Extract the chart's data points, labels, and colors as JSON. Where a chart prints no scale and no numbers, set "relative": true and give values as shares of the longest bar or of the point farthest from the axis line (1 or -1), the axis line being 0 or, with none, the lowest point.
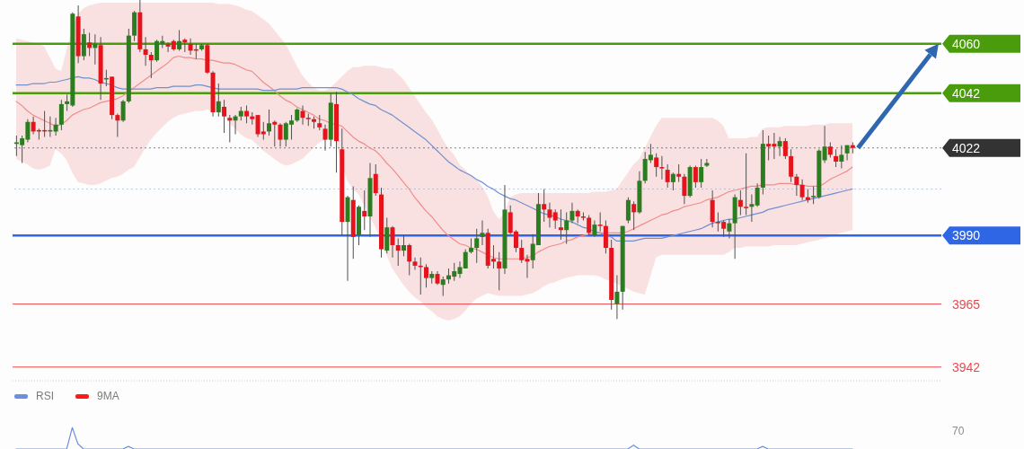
{
  "chart_data": [
    {
      "type": "candlestick",
      "categories": [
        null,
        null,
        null,
        null,
        null,
        null,
        null,
        null,
        null,
        null,
        null,
        null,
        null,
        null,
        null,
        null,
        null,
        null,
        null,
        null,
        null,
        null,
        null,
        null,
        null,
        null,
        null,
        null,
        null,
        null,
        null,
        null,
        null,
        null,
        null,
        null,
        null,
        null,
        null,
        null,
        null,
        null,
        null,
        null,
        null,
        null,
        null,
        null,
        null,
        null,
        null,
        null,
        null,
        null,
        null,
        null,
        null,
        null,
        null,
        null,
        null,
        null,
        null,
        null,
        null,
        null,
        null,
        null,
        null,
        null,
        null,
        null,
        null,
        null,
        null,
        null,
        null,
        null,
        null,
        null,
        null,
        null,
        null,
        null,
        null,
        null,
        null,
        null,
        null,
        null,
        null,
        null,
        null,
        null,
        null,
        null,
        null,
        null,
        null,
        null,
        null,
        null,
        null,
        null,
        null,
        null,
        null,
        null,
        null,
        null,
        null,
        null,
        null,
        null,
        null,
        null,
        null,
        null,
        null,
        null,
        null,
        null,
        null,
        null,
        null,
        null,
        null,
        null,
        null,
        null,
        null,
        null,
        null,
        null,
        null,
        null,
        null,
        null,
        null,
        null,
        null,
        null,
        null,
        null,
        null,
        null,
        null,
        null,
        null,
        null
      ],
      "ohlc": [
        [
          4023.5,
          4026.5,
          4019,
          4024
        ],
        [
          4023,
          4026.5,
          4016.5,
          4025.5
        ],
        [
          4025,
          4032.5,
          4024,
          4031.5
        ],
        [
          4031.5,
          4033.5,
          4027,
          4028
        ],
        [
          4028.5,
          4029,
          4025,
          4028
        ],
        [
          4028.5,
          4035.5,
          4026,
          4028
        ],
        [
          4028,
          4033.5,
          4026,
          4028.5
        ],
        [
          4028,
          4033,
          4026.5,
          4030.5
        ],
        [
          4030.5,
          4039.5,
          4028.5,
          4038
        ],
        [
          4038,
          4041.5,
          4035.5,
          4039
        ],
        [
          4037.5,
          4071.5,
          4037,
          4071
        ],
        [
          4070,
          4074,
          4053,
          4055.5
        ],
        [
          4055.5,
          4065.5,
          4054,
          4063.5
        ],
        [
          4060.5,
          4064,
          4055.5,
          4058.5
        ],
        [
          4058.5,
          4063.5,
          4052.5,
          4060
        ],
        [
          4059.5,
          4062.5,
          4039.5,
          4045.5
        ],
        [
          4047,
          4050.5,
          4044.5,
          4047.5
        ],
        [
          4048,
          4048,
          4032.5,
          4034
        ],
        [
          4034,
          4034.5,
          4026,
          4032
        ],
        [
          4032,
          4039.5,
          4031.5,
          4039
        ],
        [
          4039,
          4065.5,
          4038.5,
          4063
        ],
        [
          4063,
          4072,
          4061,
          4071.5
        ],
        [
          4071.5,
          4076,
          4057,
          4058
        ],
        [
          4058,
          4062.5,
          4052,
          4056
        ],
        [
          4056,
          4057,
          4047.5,
          4054
        ],
        [
          4054,
          4061.5,
          4053.5,
          4061
        ],
        [
          4060,
          4063,
          4058.5,
          4061
        ],
        [
          4060,
          4060.5,
          4057,
          4059
        ],
        [
          4061,
          4061.5,
          4057.5,
          4058
        ],
        [
          4058,
          4065,
          4057.5,
          4061
        ],
        [
          4061.5,
          4062,
          4057,
          4060.5
        ],
        [
          4060,
          4062,
          4056,
          4057.5
        ],
        [
          4058,
          4060,
          4054.5,
          4057.5
        ],
        [
          4058,
          4060,
          4057.5,
          4059.5
        ],
        [
          4059.5,
          4060,
          4049,
          4049.5
        ],
        [
          4049.5,
          4050,
          4033.5,
          4035
        ],
        [
          4035,
          4045.5,
          4033.5,
          4039
        ],
        [
          4037,
          4039.5,
          4027.5,
          4033.5
        ],
        [
          4033,
          4034,
          4024,
          4032
        ],
        [
          4032,
          4034,
          4027,
          4033.5
        ],
        [
          4033.5,
          4037,
          4032,
          4035.5
        ],
        [
          4035.5,
          4037.5,
          4031,
          4033.5
        ],
        [
          4033.5,
          4035,
          4030.5,
          4032.5
        ],
        [
          4034,
          4034,
          4026,
          4027
        ],
        [
          4028,
          4031.5,
          4025,
          4027
        ],
        [
          4028,
          4036,
          4026.5,
          4031
        ],
        [
          4031.5,
          4032,
          4022.5,
          4030.5
        ],
        [
          4030.5,
          4031,
          4022.5,
          4025
        ],
        [
          4025,
          4031.5,
          4022.5,
          4031
        ],
        [
          4030.5,
          4034,
          4025,
          4032
        ],
        [
          4032,
          4036.5,
          4031.5,
          4036
        ],
        [
          4035.5,
          4037.5,
          4030.5,
          4033
        ],
        [
          4033,
          4034.5,
          4030,
          4032.5
        ],
        [
          4032.5,
          4033.5,
          4029,
          4031.5
        ],
        [
          4031,
          4034,
          4028.5,
          4029.5
        ],
        [
          4029,
          4030.5,
          4021,
          4025
        ],
        [
          4025,
          4042,
          4022.5,
          4038.5
        ],
        [
          4038,
          4042.5,
          4013,
          4024.5
        ],
        [
          4021.5,
          4029,
          3990,
          3995
        ],
        [
          3995,
          4004.5,
          3973.5,
          4004
        ],
        [
          4003,
          4008,
          3981.5,
          3989.5
        ],
        [
          3990,
          4001,
          3986.5,
          4000.5
        ],
        [
          3999,
          4006.5,
          3992,
          3997
        ],
        [
          3997,
          4016.5,
          3989.5,
          4011
        ],
        [
          4012.5,
          4016,
          4004.5,
          4005.5
        ],
        [
          4005,
          4007.5,
          3982,
          3985
        ],
        [
          3984.5,
          3996.5,
          3983.5,
          3993
        ],
        [
          3993,
          3993.5,
          3982,
          3986.5
        ],
        [
          3986.5,
          3989,
          3979,
          3984.5
        ],
        [
          3984.5,
          3990,
          3982.5,
          3986.5
        ],
        [
          3986.5,
          3987,
          3975.5,
          3980.5
        ],
        [
          3980.5,
          3982,
          3977.5,
          3979
        ],
        [
          3979,
          3982,
          3968.5,
          3978.5
        ],
        [
          3978.5,
          3979.5,
          3971,
          3974.5
        ],
        [
          3974.5,
          3977,
          3972.5,
          3976
        ],
        [
          3976,
          3977,
          3972,
          3972.5
        ],
        [
          3972,
          3975,
          3968,
          3974
        ],
        [
          3974,
          3978,
          3972.5,
          3975.5
        ],
        [
          3975,
          3980,
          3973.5,
          3977
        ],
        [
          3976,
          3980.5,
          3974.5,
          3978.5
        ],
        [
          3978,
          3985,
          3978,
          3984
        ],
        [
          3984,
          3989,
          3983.5,
          3985.5
        ],
        [
          3985.5,
          3992.5,
          3980,
          3989
        ],
        [
          3989.5,
          3995.5,
          3986.5,
          3991
        ],
        [
          3991,
          3992.5,
          3978,
          3979
        ],
        [
          3981.5,
          3986.5,
          3978,
          3980.5
        ],
        [
          3980.5,
          3984,
          3970,
          3978
        ],
        [
          3978,
          4008.5,
          3976,
          3999.5
        ],
        [
          3998.5,
          4001,
          3990.5,
          3991
        ],
        [
          3991.5,
          3992,
          3984,
          3985.5
        ],
        [
          3985.5,
          3988.5,
          3980,
          3981
        ],
        [
          3981.5,
          3983,
          3974.5,
          3980.5
        ],
        [
          3981,
          3990.5,
          3978,
          3987
        ],
        [
          3986.5,
          4005.5,
          3986.5,
          4001.5
        ],
        [
          4001.5,
          4007,
          3995,
          3999.5
        ],
        [
          3999.5,
          4002,
          3993,
          3996.5
        ],
        [
          3998.5,
          3999.5,
          3992.5,
          3995.5
        ],
        [
          3993,
          3999.5,
          3988.5,
          3992
        ],
        [
          3992,
          3998.5,
          3987,
          3995.5
        ],
        [
          3995.5,
          4002,
          3994.5,
          3999
        ],
        [
          3999,
          3999.5,
          3994.5,
          3997
        ],
        [
          3997,
          3998.5,
          3995.5,
          3996.5
        ],
        [
          3996.5,
          3997.5,
          3990,
          3991
        ],
        [
          3990,
          3995.5,
          3989.5,
          3994
        ],
        [
          3994,
          3998.5,
          3991.5,
          3993.5
        ],
        [
          3993.5,
          3995.5,
          3983.5,
          3985.5
        ],
        [
          3985.5,
          3988.5,
          3963,
          3966.5
        ],
        [
          3965,
          3975.5,
          3959.5,
          3969.5
        ],
        [
          3969.5,
          3993.5,
          3963,
          3993.5
        ],
        [
          3995.5,
          4004,
          3994.5,
          4003
        ],
        [
          4001.5,
          4002.5,
          3992,
          3998.5
        ],
        [
          3998.5,
          4013.5,
          3998,
          4010
        ],
        [
          4010,
          4020.5,
          4009,
          4018
        ],
        [
          4017.5,
          4023.5,
          4016.5,
          4019.5
        ],
        [
          4018.5,
          4020,
          4011.5,
          4015
        ],
        [
          4015,
          4019,
          4010.5,
          4014.5
        ],
        [
          4014,
          4016,
          4007.5,
          4009.5
        ],
        [
          4009.5,
          4013,
          4006.5,
          4012.5
        ],
        [
          4012.5,
          4016,
          4009.5,
          4011.5
        ],
        [
          4011.5,
          4012.5,
          4001.5,
          4004.5
        ],
        [
          4004.5,
          4015.5,
          4004,
          4015
        ],
        [
          4015,
          4015.5,
          4007.5,
          4009.5
        ],
        [
          4009.5,
          4018,
          4007.5,
          4015
        ],
        [
          4015.5,
          4018,
          4015,
          4016.5
        ],
        [
          4003,
          4006.5,
          3993,
          3995
        ],
        [
          3995,
          3998.5,
          3991.5,
          3994.5
        ],
        [
          3995,
          3995.5,
          3989.5,
          3992.5
        ],
        [
          3991.5,
          3996,
          3989,
          3994.5
        ],
        [
          3994.5,
          4005,
          3981.5,
          4004
        ],
        [
          4003,
          4006.5,
          3997.5,
          4000.5
        ],
        [
          4000.5,
          4020,
          3997.5,
          4000
        ],
        [
          4000.5,
          4005,
          3995,
          4001.5
        ],
        [
          4001,
          4009,
          4000.5,
          4007.5
        ],
        [
          4007.5,
          4028.5,
          4005,
          4023.5
        ],
        [
          4023.5,
          4026.5,
          4017.5,
          4022.5
        ],
        [
          4023.5,
          4027.5,
          4018,
          4022.5
        ],
        [
          4022.5,
          4026,
          4019,
          4024.5
        ],
        [
          4024.5,
          4025.5,
          4018,
          4019
        ],
        [
          4019,
          4021.5,
          4009.5,
          4011.5
        ],
        [
          4011.5,
          4012.5,
          4004.5,
          4008.5
        ],
        [
          4008.5,
          4010.5,
          4003,
          4004
        ],
        [
          4004,
          4007,
          4002,
          4003
        ],
        [
          4004,
          4008,
          4001.5,
          4004.5
        ],
        [
          4004,
          4021.5,
          4003.5,
          4021
        ],
        [
          4017.5,
          4030,
          4016.5,
          4022.5
        ],
        [
          4022.5,
          4024,
          4018.5,
          4019.5
        ],
        [
          4019,
          4021.5,
          4015,
          4017
        ],
        [
          4017,
          4023,
          4014.5,
          4019.5
        ],
        [
          4020,
          4023,
          4017.5,
          4023
        ],
        [
          4023,
          4024,
          4020,
          4022
        ]
      ],
      "colors": [
        "#2b7d1f",
        "#2b7d1f",
        "#2b7d1f",
        "#e5141c",
        "#e5141c",
        "#e5141c",
        "#2b7d1f",
        "#2b7d1f",
        "#2b7d1f",
        "#2b7d1f",
        "#2b7d1f",
        "#e5141c",
        "#2b7d1f",
        "#e5141c",
        "#2b7d1f",
        "#e5141c",
        "#2b7d1f",
        "#e5141c",
        "#e5141c",
        "#2b7d1f",
        "#2b7d1f",
        "#2b7d1f",
        "#e5141c",
        "#e5141c",
        "#e5141c",
        "#2b7d1f",
        "#2b7d1f",
        "#e5141c",
        "#e5141c",
        "#2b7d1f",
        "#e5141c",
        "#e5141c",
        "#e5141c",
        "#2b7d1f",
        "#e5141c",
        "#e5141c",
        "#2b7d1f",
        "#e5141c",
        "#e5141c",
        "#2b7d1f",
        "#2b7d1f",
        "#e5141c",
        "#e5141c",
        "#e5141c",
        "#e5141c",
        "#2b7d1f",
        "#e5141c",
        "#e5141c",
        "#2b7d1f",
        "#2b7d1f",
        "#2b7d1f",
        "#e5141c",
        "#e5141c",
        "#e5141c",
        "#e5141c",
        "#e5141c",
        "#2b7d1f",
        "#e5141c",
        "#e5141c",
        "#2b7d1f",
        "#e5141c",
        "#2b7d1f",
        "#e5141c",
        "#2b7d1f",
        "#e5141c",
        "#e5141c",
        "#2b7d1f",
        "#e5141c",
        "#e5141c",
        "#2b7d1f",
        "#e5141c",
        "#e5141c",
        "#e5141c",
        "#e5141c",
        "#2b7d1f",
        "#e5141c",
        "#2b7d1f",
        "#2b7d1f",
        "#2b7d1f",
        "#2b7d1f",
        "#2b7d1f",
        "#2b7d1f",
        "#2b7d1f",
        "#2b7d1f",
        "#e5141c",
        "#e5141c",
        "#e5141c",
        "#2b7d1f",
        "#e5141c",
        "#e5141c",
        "#e5141c",
        "#e5141c",
        "#2b7d1f",
        "#2b7d1f",
        "#e5141c",
        "#e5141c",
        "#e5141c",
        "#e5141c",
        "#2b7d1f",
        "#2b7d1f",
        "#e5141c",
        "#e5141c",
        "#e5141c",
        "#2b7d1f",
        "#e5141c",
        "#e5141c",
        "#e5141c",
        "#2b7d1f",
        "#2b7d1f",
        "#2b7d1f",
        "#e5141c",
        "#2b7d1f",
        "#2b7d1f",
        "#2b7d1f",
        "#e5141c",
        "#e5141c",
        "#e5141c",
        "#2b7d1f",
        "#e5141c",
        "#e5141c",
        "#2b7d1f",
        "#e5141c",
        "#2b7d1f",
        "#2b7d1f",
        "#e5141c",
        "#e5141c",
        "#e5141c",
        "#2b7d1f",
        "#2b7d1f",
        "#e5141c",
        "#e5141c",
        "#2b7d1f",
        "#2b7d1f",
        "#2b7d1f",
        "#e5141c",
        "#e5141c",
        "#2b7d1f",
        "#e5141c",
        "#e5141c",
        "#e5141c",
        "#e5141c",
        "#e5141c",
        "#2b7d1f",
        "#2b7d1f",
        "#2b7d1f",
        "#e5141c",
        "#e5141c",
        "#2b7d1f",
        "#2b7d1f",
        "#e5141c"
      ],
      "series": [
        {
          "type": "line",
          "color": "#f08c8c",
          "values": [
            4039,
            4037.5,
            4035.5,
            4034,
            4033,
            4032,
            4031,
            4030,
            4030.5,
            4032,
            4034,
            4035,
            4036,
            4036.5,
            4037.5,
            4038.5,
            4039,
            4039.5,
            4040,
            4041,
            4042.5,
            4044,
            4045.5,
            4047,
            4048.5,
            4050,
            4051.5,
            4053,
            4055,
            4055.5,
            4055,
            4055,
            4054.5,
            4054.5,
            4054,
            4054,
            4053.5,
            4053,
            4053,
            4052.5,
            4051.5,
            4050.5,
            4050,
            4048,
            4046,
            4044.5,
            4043,
            4041,
            4039.5,
            4038.5,
            4037,
            4036,
            4035,
            4034,
            4032.5,
            4032,
            4031,
            4030.5,
            4030,
            4028,
            4026,
            4024.5,
            4023.5,
            4022,
            4021,
            4019,
            4016.5,
            4014.5,
            4012,
            4009.5,
            4007,
            4004,
            4001.5,
            3999,
            3997,
            3994.5,
            3992,
            3990,
            3988.5,
            3987,
            3986.5,
            3985.5,
            3985,
            3984,
            3983,
            3982,
            3981.5,
            3981.5,
            3981.5,
            3981.5,
            3981.5,
            3982,
            3982.5,
            3984,
            3985,
            3986,
            3986.5,
            3987,
            3988,
            3988.5,
            3989.5,
            3990,
            3990.5,
            3991,
            3991,
            3991,
            3991,
            3991,
            3991,
            3991.5,
            3992.5,
            3993.5,
            3994.5,
            3995.5,
            3996.5,
            3997.5,
            3998,
            3999,
            3999.5,
            4000.5,
            4001,
            4001.5,
            4002,
            4003,
            4003.5,
            4004,
            4005,
            4006,
            4006.5,
            4007,
            4007.5,
            4008,
            4008,
            4008.5,
            4008.5,
            4008.5,
            4009,
            4009,
            4009,
            4008.5,
            4008.5,
            4008,
            4008,
            4008,
            4009,
            4010.5,
            4011.5,
            4012.5,
            4013.5,
            4015
          ],
          "lower": [
            4018,
            4017,
            4016,
            4014.5,
            4014,
            4014.5,
            4015.5,
            4021.5,
            4020,
            4017.5,
            4013,
            4009.5,
            4009,
            4008.5,
            4008.5,
            4009,
            4010,
            4011,
            4011.5,
            4012.5,
            4014,
            4015,
            4018.5,
            4022,
            4025,
            4027.5,
            4029.5,
            4031.5,
            4033,
            4034,
            4034.5,
            4035,
            4035.5,
            4035.5,
            4036,
            4035.5,
            4035,
            4034.5,
            4031,
            4029,
            4027,
            4025.5,
            4025,
            4023,
            4021,
            4019.5,
            4018,
            4016.5,
            4015.5,
            4016,
            4017,
            4018,
            4020,
            4022,
            4024,
            4025,
            4026,
            4024,
            4016,
            4010,
            4007,
            4005,
            4001,
            3997,
            3993,
            3988,
            3983,
            3978,
            3975,
            3972,
            3969.5,
            3967.5,
            3966,
            3964,
            3962.5,
            3960.5,
            3959.5,
            3959,
            3959.5,
            3960.5,
            3962.5,
            3965,
            3967,
            3968,
            3969,
            3968.5,
            3968,
            3968,
            3968,
            3968,
            3968,
            3968.5,
            3969,
            3970,
            3971.5,
            3972.5,
            3973,
            3974,
            3974.5,
            3975,
            3975.5,
            3975.5,
            3975.5,
            3975.5,
            3975,
            3974,
            3973.5,
            3972.5,
            3971.5,
            3970.5,
            3969.5,
            3969,
            3968.5,
            3975,
            3982,
            3983,
            3983,
            3983,
            3983,
            3983,
            3983,
            3983,
            3983,
            3983,
            3983,
            3983,
            3983,
            3984,
            3985.5,
            3985.5,
            3986,
            3986,
            3986,
            3986,
            3986,
            3986.5,
            3986.5,
            3986.5,
            3986.5,
            3986.5,
            3987,
            3987.5,
            3988,
            3988.5,
            3989,
            3989.5,
            3990,
            3991,
            3991.5,
            3992
          ],
          "upper": [
            4062,
            4061.5,
            4061,
            4060.5,
            4060,
            4059,
            4055,
            4051,
            4050,
            4058,
            4066,
            4071,
            4073,
            4074,
            4074.5,
            4075,
            4075,
            4075,
            4075,
            4075,
            4075,
            4075,
            4075,
            4075,
            4075,
            4075,
            4075,
            4075,
            4075,
            4075,
            4075,
            4075,
            4075,
            4075,
            4075,
            4075,
            4074.5,
            4074.5,
            4074.5,
            4074,
            4073.5,
            4072.5,
            4072,
            4070.5,
            4069,
            4067.5,
            4065,
            4062.5,
            4060,
            4056,
            4052,
            4048.5,
            4046,
            4044,
            4043,
            4043,
            4044,
            4046,
            4048,
            4050,
            4051.5,
            4051.5,
            4052,
            4052,
            4052,
            4051.5,
            4051,
            4051,
            4049,
            4047,
            4044,
            4041,
            4038,
            4035,
            4032.5,
            4029,
            4025,
            4022,
            4019.5,
            4016,
            4014,
            4012,
            4010.5,
            4008,
            4004.5,
            3999,
            3996,
            3998,
            4004,
            4005,
            4005.5,
            4005.5,
            4005.5,
            4005.5,
            4005.5,
            4005.5,
            4005.5,
            4005.5,
            4005.5,
            4005.5,
            4005.5,
            4005.5,
            4005.5,
            4006,
            4006,
            4006,
            4006.5,
            4007,
            4010,
            4013,
            4016,
            4018,
            4022,
            4026,
            4030,
            4033,
            4033,
            4033,
            4033,
            4033,
            4033,
            4033,
            4033,
            4033,
            4033,
            4032,
            4030,
            4025.5,
            4025.5,
            4025.5,
            4025.5,
            4026,
            4026,
            4029,
            4029.5,
            4029.5,
            4029.5,
            4030,
            4030,
            4030,
            4030,
            4030,
            4030.5,
            4030.5,
            4030.5,
            4031,
            4031,
            4031,
            4031,
            4031
          ]
        },
        {
          "type": "line",
          "color": "#7090d0",
          "values": [
            4045,
            4045,
            4045,
            4045.5,
            4045.5,
            4045.5,
            4046,
            4046,
            4046.5,
            4047,
            4047.5,
            4048,
            4047.5,
            4047.5,
            4047,
            4046,
            4045.5,
            4045,
            4044,
            4043.5,
            4043.5,
            4043.5,
            4043.5,
            4043.5,
            4043.5,
            4044,
            4044,
            4044,
            4044.5,
            4044.5,
            4044.5,
            4044.5,
            4045,
            4045,
            4044.5,
            4044,
            4043.5,
            4043.5,
            4043.5,
            4043.5,
            4043.5,
            4043.5,
            4043.5,
            4043.5,
            4043,
            4043,
            4043,
            4043.5,
            4043.5,
            4043.5,
            4043.5,
            4044,
            4044,
            4044,
            4044,
            4044,
            4044,
            4044,
            4043.5,
            4042.5,
            4041.5,
            4040,
            4039,
            4038,
            4037.5,
            4036,
            4035,
            4034,
            4032.5,
            4031,
            4029.5,
            4028,
            4026.5,
            4025,
            4023,
            4021,
            4019,
            4017,
            4015.5,
            4014,
            4013,
            4012,
            4010.5,
            4009.5,
            4008,
            4007,
            4005.5,
            4004.5,
            4003.5,
            4003,
            4002,
            4001,
            4000,
            3999,
            3998,
            3997.5,
            3997,
            3996,
            3995.5,
            3995,
            3994,
            3993,
            3992.5,
            3991.5,
            3991,
            3990,
            3989.5,
            3988,
            3988,
            3988,
            3988,
            3988.5,
            3989,
            3989,
            3989,
            3989,
            3989.5,
            3990,
            3990.5,
            3991,
            3991.5,
            3992,
            3992.5,
            3993.5,
            3994.5,
            3995,
            3995.5,
            3996,
            3996,
            3996.5,
            3997,
            3997.5,
            3998,
            3998.5,
            3999.5,
            4000,
            4000.5,
            4001,
            4001.5,
            4002,
            4002.5,
            4003,
            4003.5,
            4004,
            4004.5,
            4005,
            4005.5,
            4006,
            4006.5,
            4007
          ]
        }
      ],
      "ylim": [
        3937,
        4076
      ],
      "yticks": [
        3990,
        4022,
        4042,
        4060
      ],
      "tick_labels": "y",
      "ref_lines": [
        {
          "axis": "y",
          "value": 4060,
          "color": "#4a9c0c"
        },
        {
          "axis": "y",
          "value": 4042,
          "color": "#4a9c0c"
        },
        {
          "axis": "y",
          "value": 4022,
          "color": "#333333",
          "line_style": "dotted"
        },
        {
          "axis": "y",
          "value": 4007,
          "color": "#8ea6d9",
          "line_style": "dotted"
        },
        {
          "axis": "y",
          "value": 3990,
          "color": "#2f66e6"
        },
        {
          "axis": "y",
          "value": 3965,
          "label": "3965",
          "color": "#f0484c"
        },
        {
          "axis": "y",
          "value": 3942,
          "label": "3942",
          "color": "#f0484c"
        }
      ]
    },
    {
      "type": "line",
      "relative": true,
      "categories": [
        null,
        null,
        null,
        null,
        null,
        null,
        null,
        null,
        null,
        null,
        null,
        null,
        null,
        null,
        null,
        null,
        null,
        null,
        null,
        null,
        null,
        null,
        null,
        null,
        null,
        null,
        null,
        null,
        null,
        null,
        null,
        null,
        null,
        null,
        null,
        null,
        null,
        null,
        null,
        null,
        null,
        null,
        null,
        null,
        null,
        null,
        null,
        null,
        null,
        null,
        null,
        null,
        null,
        null,
        null,
        null,
        null,
        null,
        null,
        null,
        null,
        null,
        null,
        null,
        null,
        null,
        null,
        null,
        null,
        null,
        null,
        null,
        null,
        null,
        null,
        null,
        null,
        null,
        null,
        null,
        null,
        null,
        null,
        null,
        null,
        null,
        null,
        null,
        null,
        null,
        null,
        null,
        null,
        null,
        null,
        null,
        null,
        null,
        null,
        null,
        null,
        null,
        null,
        null,
        null,
        null,
        null,
        null,
        null,
        null,
        null,
        null,
        null,
        null,
        null,
        null,
        null,
        null,
        null,
        null,
        null,
        null,
        null,
        null,
        null,
        null,
        null,
        null,
        null,
        null,
        null,
        null,
        null,
        null,
        null,
        null,
        null,
        null,
        null,
        null,
        null,
        null,
        null,
        null,
        null,
        null,
        null,
        null,
        null,
        null
      ],
      "series": [
        {
          "name": "RSI",
          "color": "#6d8fe0",
          "values": [
            0,
            0,
            0,
            0,
            0,
            0,
            0,
            0,
            0,
            0,
            1,
            0.24,
            0,
            0,
            0,
            0,
            0,
            0,
            0,
            0,
            0.12,
            0,
            0,
            0,
            0,
            0,
            0,
            0,
            0,
            0,
            0,
            0,
            0,
            0,
            0,
            0,
            0,
            0,
            0,
            0,
            0,
            0,
            0,
            0,
            0,
            0,
            0,
            0,
            0,
            0,
            0,
            0,
            0,
            0,
            0,
            0,
            0,
            0,
            0,
            0,
            0,
            0,
            0,
            0,
            0,
            0,
            0,
            0,
            0,
            0,
            0,
            0,
            0,
            0,
            0,
            0,
            0,
            0,
            0,
            0,
            0,
            0,
            0,
            0,
            0,
            0,
            0,
            0,
            0,
            0,
            0,
            0,
            0,
            0,
            0,
            0,
            0,
            0,
            0,
            0,
            0,
            0,
            0,
            0,
            0,
            0,
            0,
            0,
            0,
            0,
            0.18,
            0,
            0,
            0,
            0,
            0,
            0,
            0,
            0,
            0,
            0,
            0,
            0,
            0,
            0,
            0,
            0,
            0,
            0,
            0,
            0,
            0,
            0,
            0.12,
            0,
            0,
            0,
            0,
            0,
            0,
            0,
            0,
            0,
            0,
            0,
            0,
            0,
            0,
            0,
            0
          ]
        },
        {
          "name": "9MA",
          "color": "#ff1a1a",
          "values": [
            null,
            null,
            null,
            null,
            null,
            null,
            null,
            null,
            null,
            null,
            null,
            null,
            null,
            null,
            null,
            null,
            null,
            null,
            null,
            null,
            null,
            null,
            null,
            null,
            null,
            null,
            null,
            null,
            null,
            null,
            null,
            null,
            null,
            null,
            null,
            null,
            null,
            null,
            null,
            null,
            null,
            null,
            null,
            null,
            null,
            null,
            null,
            null,
            null,
            null,
            null,
            null,
            null,
            null,
            null,
            null,
            null,
            null,
            null,
            null,
            null,
            null,
            null,
            null,
            null,
            null,
            null,
            null,
            null,
            null,
            null,
            null,
            null,
            null,
            null,
            null,
            null,
            null,
            null,
            null,
            null,
            null,
            null,
            null,
            null,
            null,
            null,
            null,
            null,
            null,
            null,
            null,
            null,
            null,
            null,
            null,
            null,
            null,
            null,
            null,
            null,
            null,
            null,
            null,
            null,
            null,
            null,
            null,
            null,
            null,
            null,
            null,
            null,
            null,
            null,
            null,
            null,
            null,
            null,
            null,
            null,
            null,
            null,
            null,
            null,
            null,
            null,
            null,
            null,
            null,
            null,
            null,
            null,
            null,
            null,
            null,
            null,
            null,
            null,
            null,
            null,
            null,
            null,
            null,
            null,
            null,
            null,
            null,
            null,
            null
          ]
        }
      ],
      "annotations": [
        "70"
      ],
      "legend": "top left",
      "tick_labels": false
    }
  ]
}
